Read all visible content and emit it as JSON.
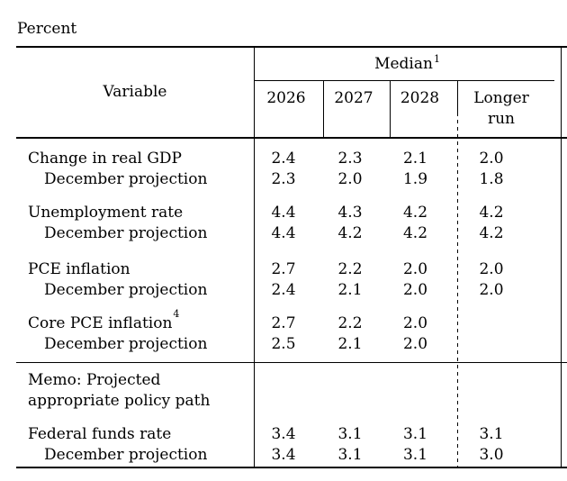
{
  "page": {
    "unit_label": "Percent"
  },
  "colors": {
    "text": "#000000",
    "rule": "#000000",
    "background": "#ffffff"
  },
  "table": {
    "header": {
      "variable_label": "Variable",
      "group_label": "Median",
      "group_footnote": "1",
      "years": [
        "2026",
        "2027",
        "2028"
      ],
      "longer_run_label": "Longer run"
    },
    "rows": [
      {
        "label": "Change in real GDP",
        "values": [
          "2.4",
          "2.3",
          "2.1",
          "2.0"
        ]
      },
      {
        "label": "December projection",
        "values": [
          "2.3",
          "2.0",
          "1.9",
          "1.8"
        ]
      },
      {
        "label": "Unemployment rate",
        "values": [
          "4.4",
          "4.3",
          "4.2",
          "4.2"
        ]
      },
      {
        "label": "December projection",
        "values": [
          "4.4",
          "4.2",
          "4.2",
          "4.2"
        ]
      },
      {
        "label": "PCE inflation",
        "values": [
          "2.7",
          "2.2",
          "2.0",
          "2.0"
        ]
      },
      {
        "label": "December projection",
        "values": [
          "2.4",
          "2.1",
          "2.0",
          "2.0"
        ]
      },
      {
        "label": "Core PCE inflation",
        "footnote": "4",
        "values": [
          "2.7",
          "2.2",
          "2.0",
          ""
        ]
      },
      {
        "label": "December projection",
        "values": [
          "2.5",
          "2.1",
          "2.0",
          ""
        ]
      }
    ],
    "memo": {
      "line1": "Memo: Projected",
      "line2": "appropriate policy path"
    },
    "memo_rows": [
      {
        "label": "Federal funds rate",
        "values": [
          "3.4",
          "3.1",
          "3.1",
          "3.1"
        ]
      },
      {
        "label": "December projection",
        "values": [
          "3.4",
          "3.1",
          "3.1",
          "3.0"
        ]
      }
    ]
  }
}
